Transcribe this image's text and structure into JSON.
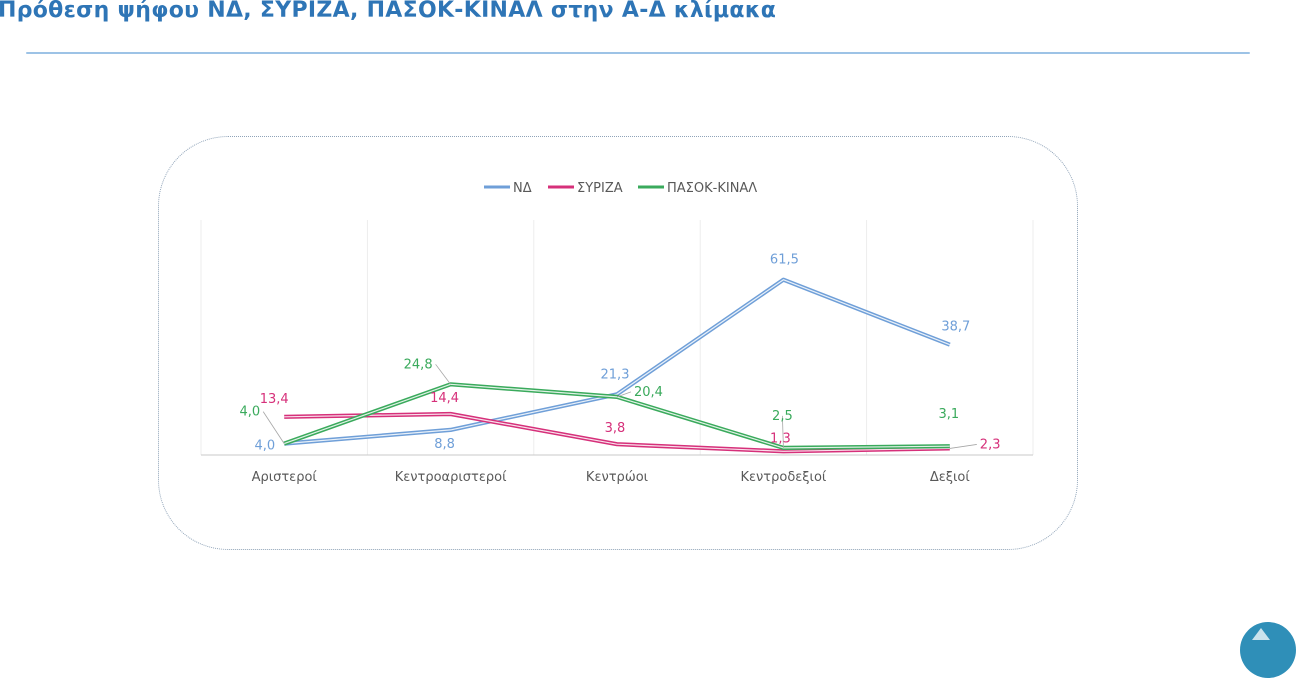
{
  "slide": {
    "title": "Πρόθεση ψήφου ΝΔ, ΣΥΡΙΖΑ, ΠΑΣΟΚ-ΚΙΝΑΛ στην Α-Δ κλίμακα"
  },
  "colors": {
    "title": "#2e75b6",
    "rule": "#9dc3e6",
    "badge": "#2f8fb8"
  },
  "chart_data": {
    "type": "line",
    "title": "",
    "xlabel": "",
    "ylabel": "",
    "categories": [
      "Αριστεροί",
      "Κεντροαριστεροί",
      "Κεντρώοι",
      "Κεντροδεξιοί",
      "Δεξιοί"
    ],
    "ylim": [
      0,
      70
    ],
    "grid": "vertical",
    "legend_position": "top",
    "series": [
      {
        "name": "ΝΔ",
        "color": "#6f9fd8",
        "values": [
          4.0,
          8.8,
          21.3,
          61.5,
          38.7
        ],
        "labels": [
          "4,0",
          "8,8",
          "21,3",
          "61,5",
          "38,7"
        ]
      },
      {
        "name": "ΣΥΡΙΖΑ",
        "color": "#d6307a",
        "values": [
          13.4,
          14.4,
          3.8,
          1.3,
          2.3
        ],
        "labels": [
          "13,4",
          "14,4",
          "3,8",
          "1,3",
          "2,3"
        ]
      },
      {
        "name": "ΠΑΣΟΚ-ΚΙΝΑΛ",
        "color": "#3aaa5c",
        "values": [
          4.0,
          24.8,
          20.4,
          2.5,
          3.1
        ],
        "labels": [
          "4,0",
          "24,8",
          "20,4",
          "2,5",
          "3,1"
        ]
      }
    ]
  }
}
